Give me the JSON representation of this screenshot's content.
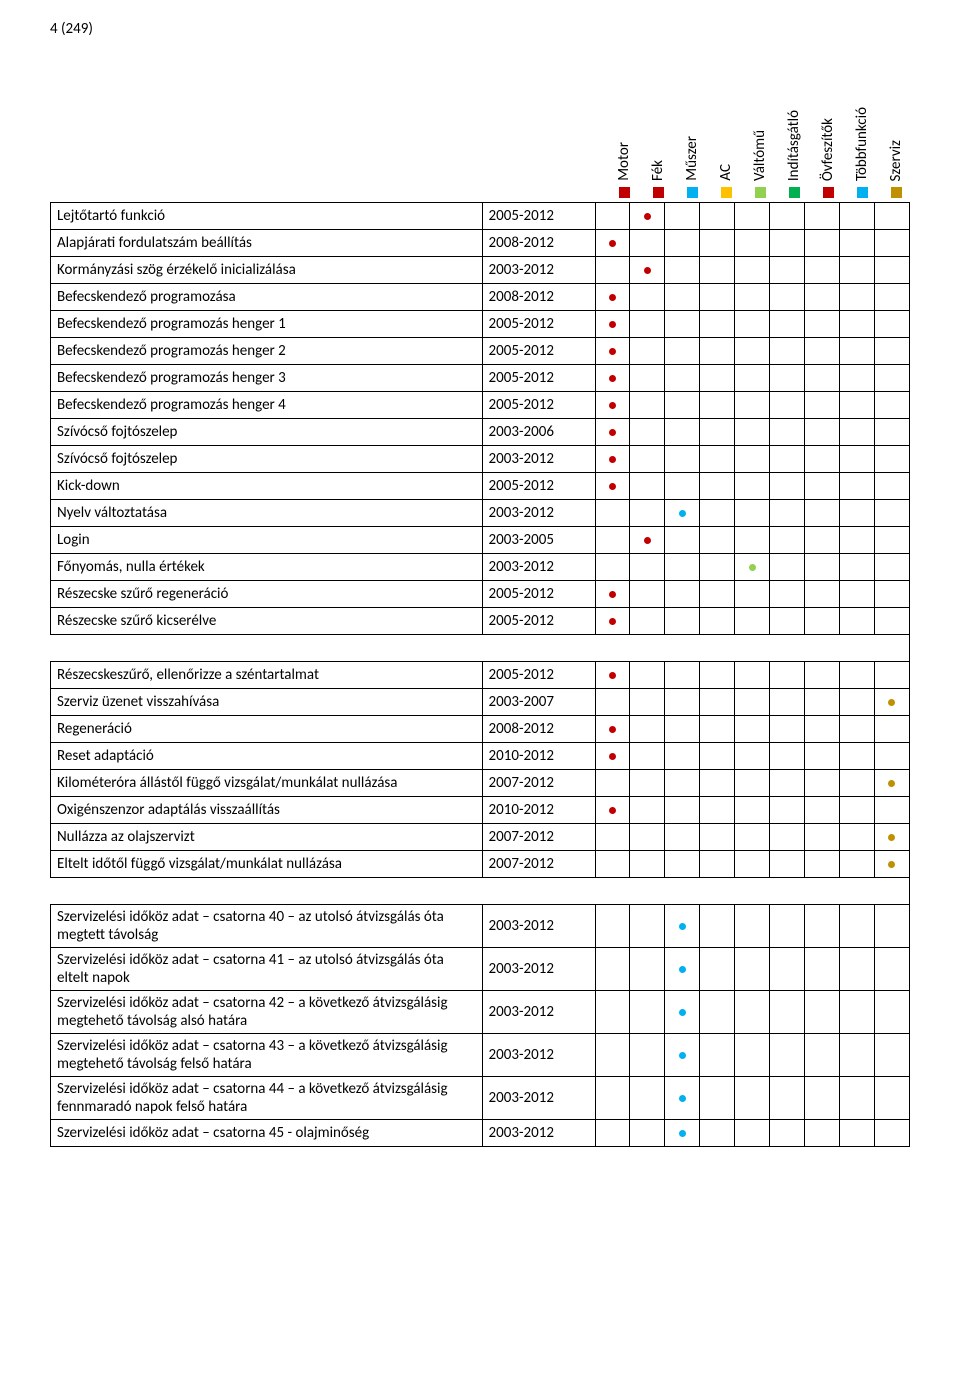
{
  "page_number": "4 (249)",
  "colors": {
    "motor": "#c00000",
    "fek": "#c00000",
    "muszer": "#00b0f0",
    "ac": "#ffc000",
    "valtomu": "#92d050",
    "inditasgatlo": "#00b050",
    "ovfeszitok": "#c00000",
    "tobbfunkcio": "#00b0f0",
    "szerviz": "#bf9000"
  },
  "legend": [
    {
      "label": "Motor",
      "color_key": "motor"
    },
    {
      "label": "Fék",
      "color_key": "fek"
    },
    {
      "label": "Műszer",
      "color_key": "muszer"
    },
    {
      "label": "AC",
      "color_key": "ac"
    },
    {
      "label": "Váltómű",
      "color_key": "valtomu"
    },
    {
      "label": "Indításgátló",
      "color_key": "inditasgatlo"
    },
    {
      "label": "Övfeszítők",
      "color_key": "ovfeszitok"
    },
    {
      "label": "Többfunkció",
      "color_key": "tobbfunkcio"
    },
    {
      "label": "Szerviz",
      "color_key": "szerviz"
    }
  ],
  "dot_columns": [
    "motor",
    "fek",
    "muszer",
    "ac",
    "valtomu",
    "inditasgatlo",
    "ovfeszitok",
    "tobbfunkcio",
    "szerviz"
  ],
  "sections": [
    {
      "rows": [
        {
          "label": "Lejtőtartó funkció",
          "years": "2005-2012",
          "dots": {
            "fek": true
          }
        },
        {
          "label": "Alapjárati fordulatszám beállítás",
          "years": "2008-2012",
          "dots": {
            "motor": true
          }
        },
        {
          "label": "Kormányzási szög érzékelő inicializálása",
          "years": "2003-2012",
          "dots": {
            "fek": true
          }
        },
        {
          "label": "Befecskendező programozása",
          "years": "2008-2012",
          "dots": {
            "motor": true
          }
        },
        {
          "label": "Befecskendező programozás henger 1",
          "years": "2005-2012",
          "dots": {
            "motor": true
          }
        },
        {
          "label": "Befecskendező programozás henger 2",
          "years": "2005-2012",
          "dots": {
            "motor": true
          }
        },
        {
          "label": "Befecskendező programozás henger 3",
          "years": "2005-2012",
          "dots": {
            "motor": true
          }
        },
        {
          "label": "Befecskendező programozás henger 4",
          "years": "2005-2012",
          "dots": {
            "motor": true
          }
        },
        {
          "label": "Szívócső fojtószelep",
          "years": "2003-2006",
          "dots": {
            "motor": true
          }
        },
        {
          "label": "Szívócső fojtószelep",
          "years": "2003-2012",
          "dots": {
            "motor": true
          }
        },
        {
          "label": "Kick-down",
          "years": "2005-2012",
          "dots": {
            "motor": true
          }
        },
        {
          "label": "Nyelv változtatása",
          "years": "2003-2012",
          "dots": {
            "muszer": true
          }
        },
        {
          "label": "Login",
          "years": "2003-2005",
          "dots": {
            "fek": true
          }
        },
        {
          "label": "Főnyomás, nulla értékek",
          "years": "2003-2012",
          "dots": {
            "valtomu": true
          }
        },
        {
          "label": "Részecske szűrő regeneráció",
          "years": "2005-2012",
          "dots": {
            "motor": true
          }
        },
        {
          "label": "Részecske szűrő kicserélve",
          "years": "2005-2012",
          "dots": {
            "motor": true
          }
        }
      ]
    },
    {
      "rows": [
        {
          "label": "Részecskeszűrő, ellenőrizze a széntartalmat",
          "years": "2005-2012",
          "dots": {
            "motor": true
          }
        },
        {
          "label": "Szerviz üzenet visszahívása",
          "years": "2003-2007",
          "dots": {
            "szerviz": true
          }
        },
        {
          "label": "Regeneráció",
          "years": "2008-2012",
          "dots": {
            "motor": true
          }
        },
        {
          "label": "Reset adaptáció",
          "years": "2010-2012",
          "dots": {
            "motor": true
          }
        },
        {
          "label": "Kilométeróra állástől függő vizsgálat/munkálat nullázása",
          "years": "2007-2012",
          "dots": {
            "szerviz": true
          }
        },
        {
          "label": "Oxigénszenzor adaptálás visszaállítás",
          "years": "2010-2012",
          "dots": {
            "motor": true
          }
        },
        {
          "label": "Nullázza az olajszervizt",
          "years": "2007-2012",
          "dots": {
            "szerviz": true
          }
        },
        {
          "label": "Eltelt időtől függő vizsgálat/munkálat nullázása",
          "years": "2007-2012",
          "dots": {
            "szerviz": true
          }
        }
      ]
    },
    {
      "rows": [
        {
          "label": "Szervizelési időköz adat – csatorna 40 – az utolsó átvizsgálás óta megtett távolság",
          "years": "2003-2012",
          "dots": {
            "muszer": true
          }
        },
        {
          "label": "Szervizelési időköz adat – csatorna 41 – az utolsó átvizsgálás óta eltelt napok",
          "years": "2003-2012",
          "dots": {
            "muszer": true
          }
        },
        {
          "label": "Szervizelési időköz adat – csatorna 42 – a következő átvizsgálásig megtehető távolság alsó határa",
          "years": "2003-2012",
          "dots": {
            "muszer": true
          }
        },
        {
          "label": "Szervizelési időköz adat – csatorna 43 – a következő átvizsgálásig megtehető távolság felső határa",
          "years": "2003-2012",
          "dots": {
            "muszer": true
          }
        },
        {
          "label": "Szervizelési időköz adat – csatorna 44 – a következő átvizsgálásig fennmaradó napok felső határa",
          "years": "2003-2012",
          "dots": {
            "muszer": true
          }
        },
        {
          "label": "Szervizelési időköz adat – csatorna 45 - olajminőség",
          "years": "2003-2012",
          "dots": {
            "muszer": true
          }
        }
      ]
    }
  ]
}
